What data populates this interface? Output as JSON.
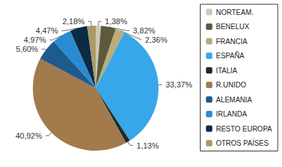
{
  "chart_data": {
    "type": "pie",
    "categories": [
      "NORTEAM.",
      "BENELUX",
      "FRANCIA",
      "ESPAÑA",
      "ITALIA",
      "R.UNIDO",
      "ALEMANIA",
      "IRLANDA",
      "RESTO EUROPA",
      "OTROS PAÍSES"
    ],
    "values": [
      1.38,
      3.82,
      2.36,
      33.37,
      1.13,
      40.92,
      5.6,
      4.97,
      4.47,
      2.18
    ],
    "value_labels": [
      "1,38%",
      "3,82%",
      "2,36%",
      "33,37%",
      "1,13%",
      "40,92%",
      "5,60%",
      "4,97%",
      "4,47%",
      "2,18%"
    ],
    "colors": [
      "#c9c9b6",
      "#5c5a3a",
      "#b9ad7a",
      "#37a6ea",
      "#1f2a28",
      "#a27a4b",
      "#1d5b8d",
      "#2b8bd2",
      "#0b2b42",
      "#a99b68"
    ],
    "data_labels": true,
    "legend": "right"
  }
}
